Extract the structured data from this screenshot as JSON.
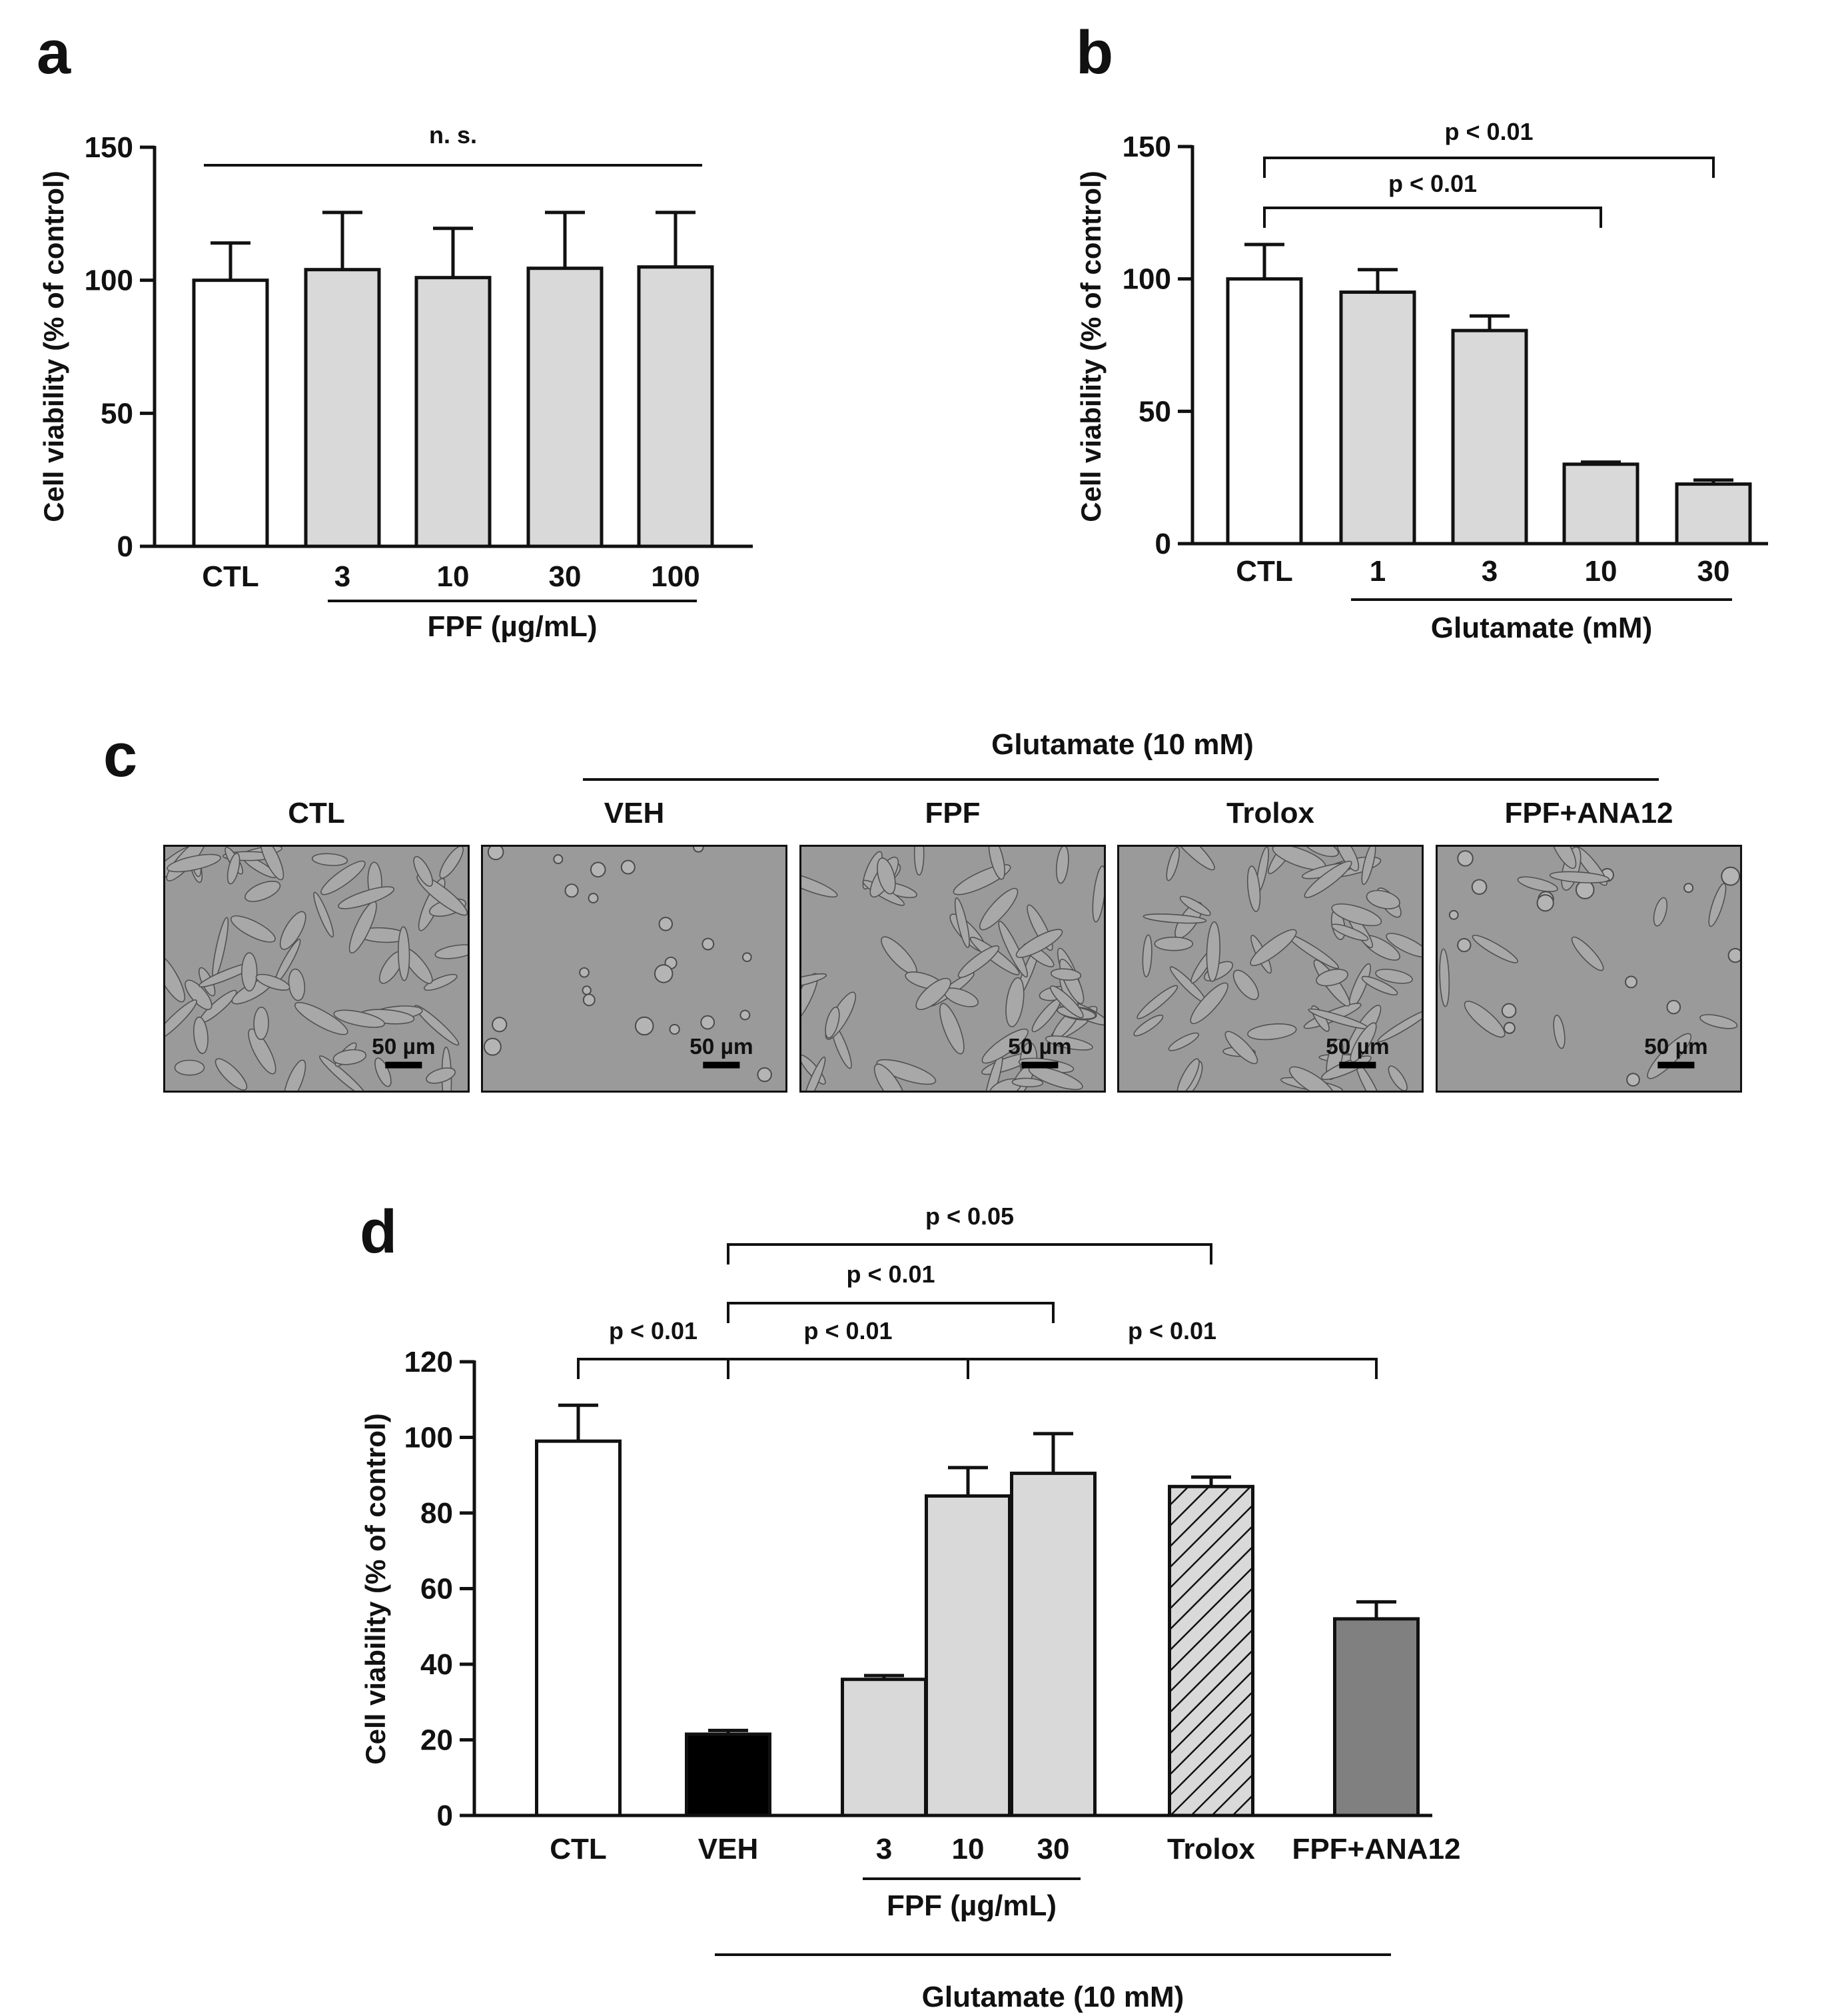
{
  "panel_letters": {
    "a": "a",
    "b": "b",
    "c": "c",
    "d": "d"
  },
  "chart_data": [
    {
      "id": "a",
      "type": "bar",
      "ylabel": "Cell viability (% of control)",
      "ylim": [
        0,
        150
      ],
      "yticks": [
        0,
        50,
        100,
        150
      ],
      "categories": [
        "CTL",
        "3",
        "10",
        "30",
        "100"
      ],
      "values": [
        100,
        104,
        101,
        104.5,
        105
      ],
      "errors": [
        14,
        21.5,
        18.5,
        21,
        20.5
      ],
      "fills": [
        "#ffffff",
        "#d9d9d9",
        "#d9d9d9",
        "#d9d9d9",
        "#d9d9d9"
      ],
      "group_label": "FPF  (µg/mL)",
      "group_from": 1,
      "group_to": 4,
      "annotations": [
        {
          "from": 0,
          "to": 4,
          "text": "n. s.",
          "style": "line"
        }
      ]
    },
    {
      "id": "b",
      "type": "bar",
      "ylabel": "Cell viability (% of control)",
      "ylim": [
        0,
        150
      ],
      "yticks": [
        0,
        50,
        100,
        150
      ],
      "categories": [
        "CTL",
        "1",
        "3",
        "10",
        "30"
      ],
      "values": [
        100,
        95,
        80.5,
        30,
        22.5
      ],
      "errors": [
        13,
        8.5,
        5.5,
        0.8,
        1.5
      ],
      "fills": [
        "#ffffff",
        "#d9d9d9",
        "#d9d9d9",
        "#d9d9d9",
        "#d9d9d9"
      ],
      "group_label": "Glutamate (mM)",
      "group_from": 1,
      "group_to": 4,
      "annotations": [
        {
          "from": 0,
          "to": 3,
          "text": "p < 0.01",
          "style": "bracket"
        },
        {
          "from": 0,
          "to": 4,
          "text": "p < 0.01",
          "style": "bracket"
        }
      ]
    },
    {
      "id": "d",
      "type": "bar",
      "ylabel": "Cell viability (% of control)",
      "ylim": [
        0,
        120
      ],
      "yticks": [
        0,
        20,
        40,
        60,
        80,
        100,
        120
      ],
      "categories": [
        "CTL",
        "VEH",
        "3",
        "10",
        "30",
        "Trolox",
        "FPF+ANA12"
      ],
      "values": [
        99,
        21.5,
        36,
        84.5,
        90.5,
        87,
        52
      ],
      "errors": [
        9.5,
        1,
        1,
        7.5,
        10.5,
        2.5,
        4.5
      ],
      "fills": [
        "#ffffff",
        "#000000",
        "#d9d9d9",
        "#d9d9d9",
        "#d9d9d9",
        "hatch",
        "#808080"
      ],
      "group_label": "FPF (µg/mL)",
      "group_from": 2,
      "group_to": 4,
      "outer_group_label": "Glutamate (10 mM)",
      "outer_group_from": 1,
      "outer_group_to": 6,
      "annotations": [
        {
          "from": 0,
          "to": 1,
          "text": "p < 0.01",
          "style": "bracket"
        },
        {
          "from": 1,
          "to": 3,
          "text": "p < 0.01",
          "style": "bracket"
        },
        {
          "from": 1,
          "to": 4,
          "text": "p < 0.01",
          "style": "bracket"
        },
        {
          "from": 1,
          "to": 5,
          "text": "p < 0.05",
          "style": "bracket"
        },
        {
          "from": 3,
          "to": 6,
          "text": "p < 0.01",
          "style": "bracket"
        }
      ]
    }
  ],
  "micrographs": {
    "group_label": "Glutamate (10 mM)",
    "scale_label": "50 µm",
    "items": [
      {
        "label": "CTL",
        "condition": "healthy"
      },
      {
        "label": "VEH",
        "condition": "damaged"
      },
      {
        "label": "FPF",
        "condition": "healthy"
      },
      {
        "label": "Trolox",
        "condition": "healthy"
      },
      {
        "label": "FPF+ANA12",
        "condition": "partial"
      }
    ]
  },
  "colors": {
    "bar_gray": "#d9d9d9",
    "bar_dark": "#808080",
    "micrograph_bg": "#9a9a9a"
  }
}
